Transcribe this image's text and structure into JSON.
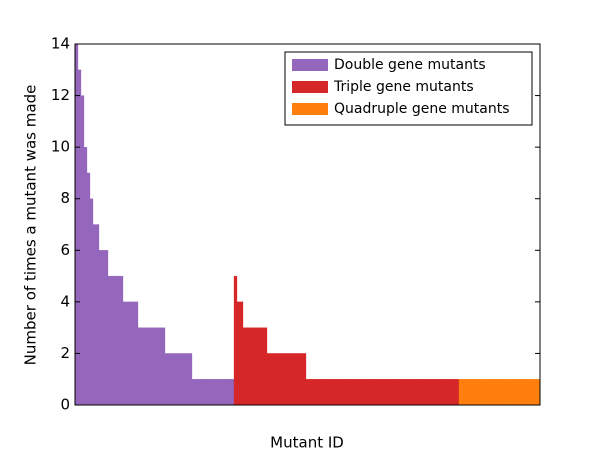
{
  "chart_data": {
    "type": "bar",
    "xlabel": "Mutant ID",
    "ylabel": "Number of times a mutant was made",
    "ylim": [
      0,
      14
    ],
    "yticks": [
      0,
      2,
      4,
      6,
      8,
      10,
      12,
      14
    ],
    "grid": false,
    "legend": "upper right",
    "series": [
      {
        "name": "Double gene mutants",
        "color": "#9467bd",
        "values": [
          14,
          13,
          12,
          10,
          9,
          8,
          7,
          7,
          6,
          6,
          6,
          5,
          5,
          5,
          5,
          5,
          4,
          4,
          4,
          4,
          4,
          3,
          3,
          3,
          3,
          3,
          3,
          3,
          3,
          3,
          2,
          2,
          2,
          2,
          2,
          2,
          2,
          2,
          2,
          1,
          1,
          1,
          1,
          1,
          1,
          1,
          1,
          1,
          1,
          1,
          1,
          1,
          1
        ]
      },
      {
        "name": "Triple gene mutants",
        "color": "#d62728",
        "values": [
          5,
          4,
          4,
          3,
          3,
          3,
          3,
          3,
          3,
          3,
          3,
          2,
          2,
          2,
          2,
          2,
          2,
          2,
          2,
          2,
          2,
          2,
          2,
          2,
          1,
          1,
          1,
          1,
          1,
          1,
          1,
          1,
          1,
          1,
          1,
          1,
          1,
          1,
          1,
          1,
          1,
          1,
          1,
          1,
          1,
          1,
          1,
          1,
          1,
          1,
          1,
          1,
          1,
          1,
          1,
          1,
          1,
          1,
          1,
          1,
          1,
          1,
          1,
          1,
          1,
          1,
          1,
          1,
          1,
          1,
          1,
          1,
          1,
          1,
          1
        ]
      },
      {
        "name": "Quadruple gene mutants",
        "color": "#ff7f0e",
        "values": [
          1,
          1,
          1,
          1,
          1,
          1,
          1,
          1,
          1,
          1,
          1,
          1,
          1,
          1,
          1,
          1,
          1,
          1,
          1,
          1,
          1,
          1,
          1,
          1,
          1,
          1,
          1
        ]
      }
    ]
  }
}
